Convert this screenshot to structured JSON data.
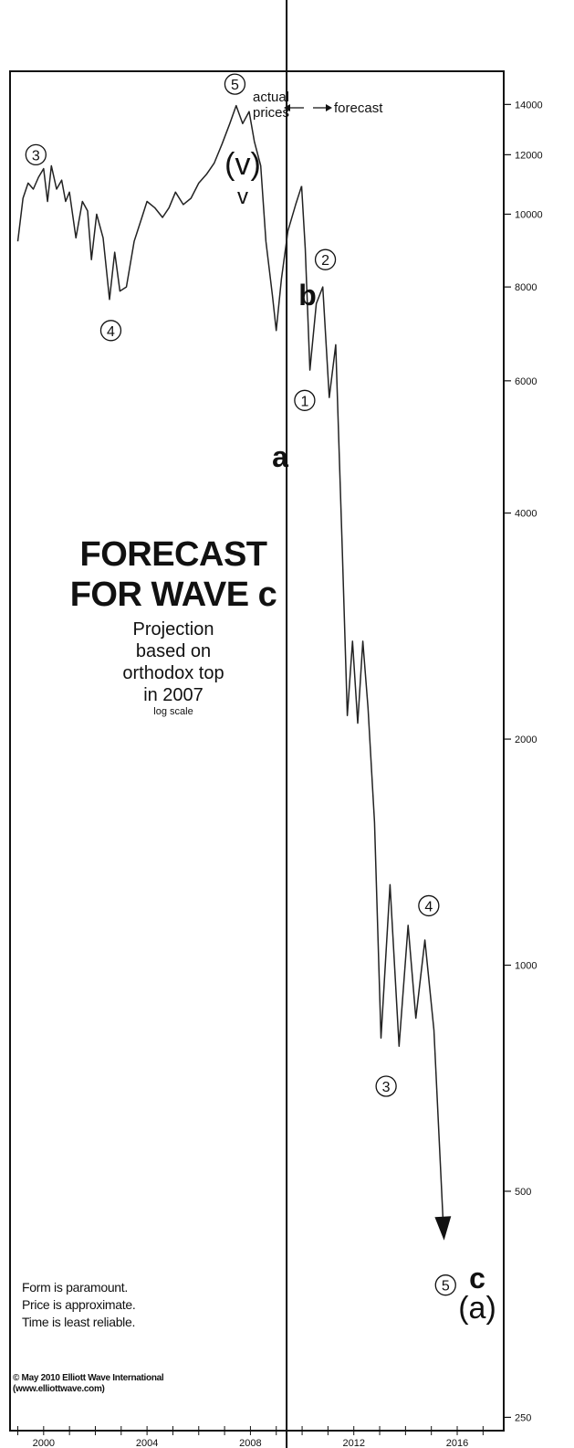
{
  "chart_data": {
    "type": "line",
    "scale": "log",
    "ylim": [
      240,
      15500
    ],
    "xlim": [
      1998.7,
      2017.8
    ],
    "yticks": [
      {
        "value": 14000,
        "label": "14000"
      },
      {
        "value": 12000,
        "label": "12000"
      },
      {
        "value": 10000,
        "label": "10000"
      },
      {
        "value": 8000,
        "label": "8000"
      },
      {
        "value": 6000,
        "label": "6000"
      },
      {
        "value": 4000,
        "label": "4000"
      },
      {
        "value": 2000,
        "label": "2000"
      },
      {
        "value": 1000,
        "label": "1000"
      },
      {
        "value": 500,
        "label": "500"
      },
      {
        "value": 250,
        "label": "250"
      }
    ],
    "xticks": [
      {
        "value": 2000,
        "label": "2000"
      },
      {
        "value": 2004,
        "label": "2004"
      },
      {
        "value": 2008,
        "label": "2008"
      },
      {
        "value": 2012,
        "label": "2012"
      },
      {
        "value": 2016,
        "label": "2016"
      }
    ],
    "divider_x": 2009.4,
    "actual_prices": [
      [
        1999.0,
        9200
      ],
      [
        1999.2,
        10500
      ],
      [
        1999.4,
        11000
      ],
      [
        1999.6,
        10800
      ],
      [
        1999.8,
        11200
      ],
      [
        2000.0,
        11500
      ],
      [
        2000.15,
        10400
      ],
      [
        2000.3,
        11600
      ],
      [
        2000.5,
        10800
      ],
      [
        2000.7,
        11100
      ],
      [
        2000.85,
        10400
      ],
      [
        2001.0,
        10700
      ],
      [
        2001.25,
        9300
      ],
      [
        2001.5,
        10400
      ],
      [
        2001.7,
        10100
      ],
      [
        2001.85,
        8700
      ],
      [
        2002.05,
        10000
      ],
      [
        2002.3,
        9300
      ],
      [
        2002.55,
        7700
      ],
      [
        2002.75,
        8900
      ],
      [
        2002.95,
        7900
      ],
      [
        2003.2,
        8000
      ],
      [
        2003.5,
        9200
      ],
      [
        2003.8,
        9900
      ],
      [
        2004.0,
        10400
      ],
      [
        2004.3,
        10200
      ],
      [
        2004.6,
        9900
      ],
      [
        2004.85,
        10200
      ],
      [
        2005.1,
        10700
      ],
      [
        2005.4,
        10300
      ],
      [
        2005.7,
        10500
      ],
      [
        2006.0,
        11000
      ],
      [
        2006.3,
        11300
      ],
      [
        2006.6,
        11700
      ],
      [
        2006.9,
        12400
      ],
      [
        2007.2,
        13200
      ],
      [
        2007.45,
        13950
      ],
      [
        2007.7,
        13200
      ],
      [
        2007.95,
        13700
      ],
      [
        2008.15,
        12500
      ],
      [
        2008.4,
        11600
      ],
      [
        2008.6,
        9200
      ],
      [
        2008.85,
        7800
      ],
      [
        2009.0,
        7000
      ],
      [
        2009.2,
        8200
      ],
      [
        2009.45,
        9500
      ],
      [
        2009.75,
        10300
      ],
      [
        2009.98,
        10900
      ]
    ],
    "forecast": [
      [
        2009.98,
        10900
      ],
      [
        2010.12,
        9000
      ],
      [
        2010.3,
        6200
      ],
      [
        2010.55,
        7600
      ],
      [
        2010.8,
        8000
      ],
      [
        2011.05,
        5700
      ],
      [
        2011.3,
        6700
      ],
      [
        2011.55,
        3600
      ],
      [
        2011.75,
        2150
      ],
      [
        2011.95,
        2700
      ],
      [
        2012.15,
        2100
      ],
      [
        2012.35,
        2700
      ],
      [
        2012.55,
        2200
      ],
      [
        2012.8,
        1550
      ],
      [
        2013.05,
        800
      ],
      [
        2013.4,
        1280
      ],
      [
        2013.75,
        780
      ],
      [
        2014.1,
        1130
      ],
      [
        2014.4,
        850
      ],
      [
        2014.75,
        1080
      ],
      [
        2015.1,
        820
      ],
      [
        2015.45,
        460
      ]
    ],
    "waves": [
      {
        "label": "3",
        "x": 1999.7,
        "y": 12000
      },
      {
        "label": "4",
        "x": 2002.6,
        "y": 7000
      },
      {
        "label": "5",
        "x": 2007.4,
        "y": 14900
      },
      {
        "label": "1",
        "x": 2010.1,
        "y": 5650
      },
      {
        "label": "2",
        "x": 2010.9,
        "y": 8700
      },
      {
        "label": "3",
        "x": 2013.25,
        "y": 690
      },
      {
        "label": "4",
        "x": 2014.9,
        "y": 1200
      },
      {
        "label": "5",
        "x": 2015.55,
        "y": 375
      }
    ]
  },
  "header": {
    "actual_line1": "actual",
    "actual_line2": "prices",
    "forecast": "forecast"
  },
  "title": {
    "line1": "FORECAST",
    "line2": "FOR WAVE c",
    "sub1": "Projection",
    "sub2": "based on",
    "sub3": "orthodox top",
    "sub4": "in 2007",
    "scale_note": "log scale"
  },
  "wave_labels": {
    "top_v": "(v)",
    "top_small_v": "v",
    "a": "a",
    "b": "b",
    "c": "c",
    "a_paren": "(a)"
  },
  "disclaimer": {
    "line1": "Form is paramount.",
    "line2": "Price is approximate.",
    "line3": "Time is least reliable."
  },
  "copyright": {
    "line1": "© May 2010 Elliott Wave International",
    "line2": "(www.elliottwave.com)"
  }
}
